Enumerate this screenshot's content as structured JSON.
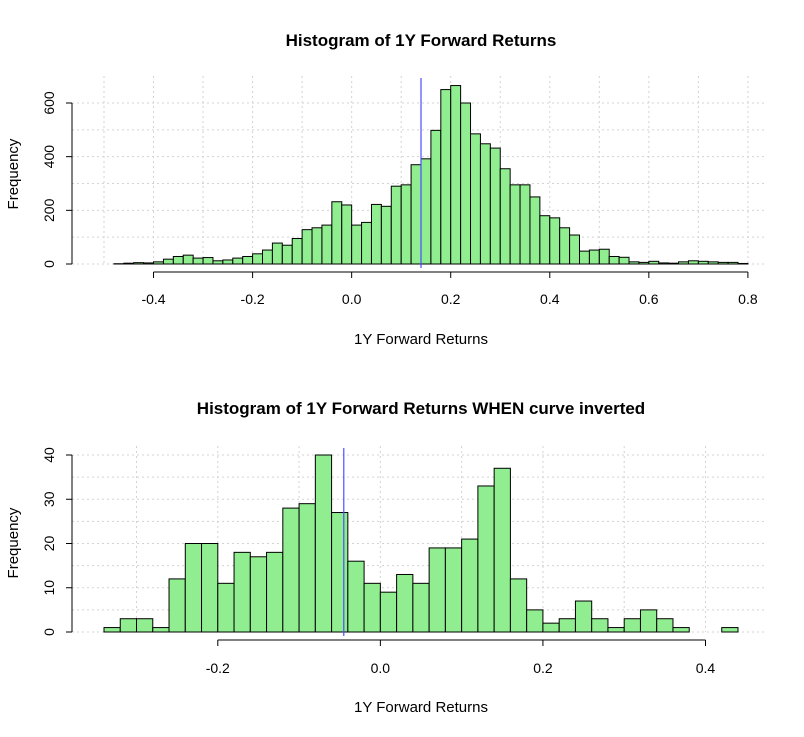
{
  "chart_data": [
    {
      "type": "bar",
      "title": "Histogram of 1Y Forward Returns",
      "xlabel": "1Y Forward Returns",
      "ylabel": "Frequency",
      "xlim": [
        -0.5,
        0.78
      ],
      "ylim": [
        0,
        600
      ],
      "x_ticks": [
        -0.4,
        -0.2,
        0.0,
        0.2,
        0.4,
        0.6,
        0.8
      ],
      "x_tick_labels": [
        "-0.4",
        "-0.2",
        "0.0",
        "0.2",
        "0.4",
        "0.6",
        "0.8"
      ],
      "y_ticks": [
        0,
        200,
        400,
        600
      ],
      "y_tick_labels": [
        "0",
        "200",
        "400",
        "600"
      ],
      "grid": true,
      "bin_start": -0.5,
      "bin_width": 0.02,
      "values": [
        0,
        1,
        3,
        5,
        4,
        8,
        18,
        28,
        33,
        22,
        24,
        12,
        15,
        22,
        28,
        38,
        52,
        78,
        70,
        95,
        128,
        135,
        145,
        232,
        220,
        145,
        155,
        222,
        215,
        290,
        295,
        370,
        392,
        498,
        650,
        665,
        600,
        485,
        448,
        432,
        355,
        295,
        295,
        250,
        180,
        172,
        135,
        108,
        48,
        52,
        55,
        28,
        25,
        8,
        6,
        10,
        4,
        3,
        8,
        12,
        10,
        8,
        6,
        6,
        2
      ],
      "vline": 0.14,
      "bar_color": "#90ee90",
      "vline_color": "#4d4dff"
    },
    {
      "type": "bar",
      "title": "Histogram of 1Y Forward Returns WHEN curve inverted",
      "xlabel": "1Y Forward Returns",
      "ylabel": "Frequency",
      "xlim": [
        -0.34,
        0.44
      ],
      "ylim": [
        0,
        40
      ],
      "x_ticks": [
        -0.2,
        0.0,
        0.2,
        0.4
      ],
      "x_tick_labels": [
        "-0.2",
        "0.0",
        "0.2",
        "0.4"
      ],
      "y_ticks": [
        0,
        10,
        20,
        30,
        40
      ],
      "y_tick_labels": [
        "0",
        "10",
        "20",
        "30",
        "40"
      ],
      "grid": true,
      "bin_start": -0.34,
      "bin_width": 0.02,
      "values": [
        1,
        3,
        3,
        1,
        12,
        20,
        20,
        11,
        18,
        17,
        18,
        28,
        29,
        40,
        27,
        16,
        11,
        9,
        13,
        11,
        19,
        19,
        21,
        33,
        37,
        12,
        5,
        2,
        3,
        7,
        3,
        1,
        3,
        5,
        3,
        1,
        0,
        0,
        1
      ],
      "vline": -0.045,
      "bar_color": "#90ee90",
      "vline_color": "#4d4dff"
    }
  ]
}
